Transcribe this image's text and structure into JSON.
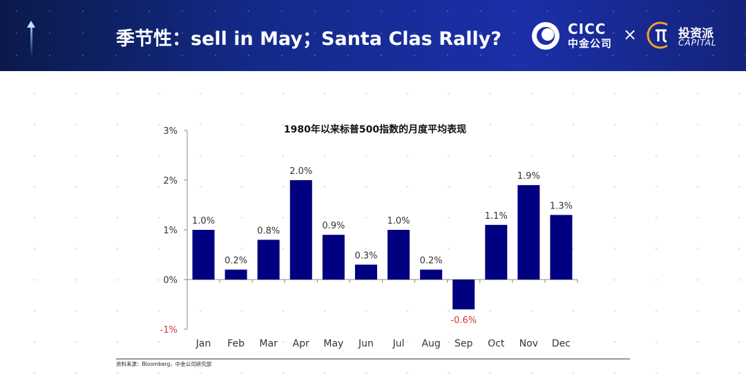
{
  "header": {
    "title": "季节性：sell in May；Santa Clas Rally?",
    "brand1_en": "CICC",
    "brand1_zh": "中金公司",
    "times": "×",
    "brand2_zh": "投资派",
    "brand2_en": "CAPITAL"
  },
  "colors": {
    "bar": "#000080",
    "negative_label": "#e03030",
    "header": "#1b2fa8"
  },
  "chart_data": {
    "type": "bar",
    "title": "1980年以来标普500指数的月度平均表现",
    "categories": [
      "Jan",
      "Feb",
      "Mar",
      "Apr",
      "May",
      "Jun",
      "Jul",
      "Aug",
      "Sep",
      "Oct",
      "Nov",
      "Dec"
    ],
    "values": [
      1.0,
      0.2,
      0.8,
      2.0,
      0.9,
      0.3,
      1.0,
      0.2,
      -0.6,
      1.1,
      1.9,
      1.3
    ],
    "labels": [
      "1.0%",
      "0.2%",
      "0.8%",
      "2.0%",
      "0.9%",
      "0.3%",
      "1.0%",
      "0.2%",
      "-0.6%",
      "1.1%",
      "1.9%",
      "1.3%"
    ],
    "ylim": [
      -1,
      3
    ],
    "yticks": [
      3,
      2,
      1,
      0,
      -1
    ],
    "ytick_labels": [
      "3%",
      "2%",
      "1%",
      "0%",
      "-1%"
    ],
    "xlabel": "",
    "ylabel": "",
    "grid": false
  },
  "footer": {
    "source": "资料来源：Bloomberg，中金公司研究部"
  }
}
